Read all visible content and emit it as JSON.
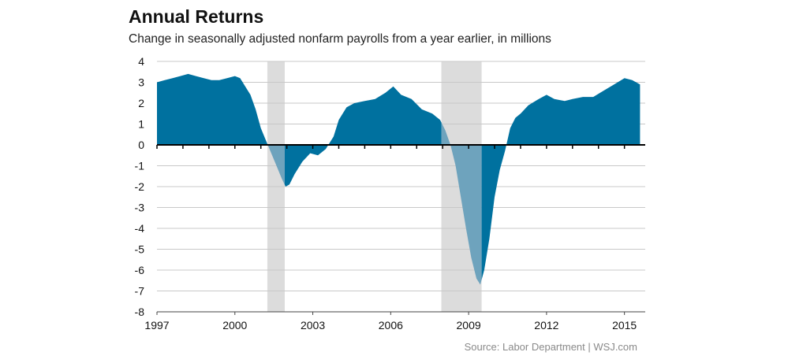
{
  "title": "Annual Returns",
  "subtitle": "Change in seasonally adjusted nonfarm payrolls from a year earlier, in millions",
  "source": "Source: Labor Department  |  WSJ.com",
  "colors": {
    "area_dark": "#00719f",
    "area_light": "#6ea3bd",
    "recession": "#dcdcdc",
    "grid": "#c8c8c8",
    "zero_line": "#000000"
  },
  "chart_data": {
    "type": "area",
    "xlim": [
      1997,
      2015.8
    ],
    "ylim": [
      -8,
      4
    ],
    "grid": true,
    "x_ticks": [
      1997,
      2000,
      2003,
      2006,
      2009,
      2012,
      2015
    ],
    "y_ticks": [
      4,
      3,
      2,
      1,
      0,
      -1,
      -2,
      -3,
      -4,
      -5,
      -6,
      -7,
      -8
    ],
    "recessions": [
      {
        "start": 2001.25,
        "end": 2001.92
      },
      {
        "start": 2007.95,
        "end": 2009.5
      }
    ],
    "series": [
      {
        "x": [
          1997.0,
          1997.3,
          1997.6,
          1997.9,
          1998.2,
          1998.5,
          1998.8,
          1999.1,
          1999.4,
          1999.7,
          2000.0,
          2000.2,
          2000.4,
          2000.6,
          2000.8,
          2001.0,
          2001.2,
          2001.4,
          2001.6,
          2001.8,
          2001.95,
          2002.1,
          2002.3,
          2002.6,
          2002.9,
          2003.2,
          2003.5,
          2003.8,
          2004.0,
          2004.3,
          2004.6,
          2005.0,
          2005.4,
          2005.8,
          2006.1,
          2006.4,
          2006.8,
          2007.2,
          2007.6,
          2007.9,
          2008.1,
          2008.3,
          2008.5,
          2008.7,
          2008.9,
          2009.1,
          2009.3,
          2009.45,
          2009.6,
          2009.8,
          2010.0,
          2010.2,
          2010.4,
          2010.6,
          2010.8,
          2011.0,
          2011.3,
          2011.7,
          2012.0,
          2012.3,
          2012.7,
          2013.0,
          2013.4,
          2013.8,
          2014.2,
          2014.6,
          2015.0,
          2015.3,
          2015.6
        ],
        "y": [
          3.0,
          3.1,
          3.2,
          3.3,
          3.4,
          3.3,
          3.2,
          3.1,
          3.1,
          3.2,
          3.3,
          3.2,
          2.8,
          2.4,
          1.7,
          0.8,
          0.2,
          -0.4,
          -1.0,
          -1.6,
          -2.0,
          -1.9,
          -1.4,
          -0.8,
          -0.4,
          -0.5,
          -0.2,
          0.4,
          1.2,
          1.8,
          2.0,
          2.1,
          2.2,
          2.5,
          2.8,
          2.4,
          2.2,
          1.7,
          1.5,
          1.2,
          0.7,
          0.0,
          -1.0,
          -2.5,
          -4.0,
          -5.4,
          -6.4,
          -6.7,
          -6.0,
          -4.5,
          -2.5,
          -1.2,
          -0.3,
          0.8,
          1.3,
          1.5,
          1.9,
          2.2,
          2.4,
          2.2,
          2.1,
          2.2,
          2.3,
          2.3,
          2.6,
          2.9,
          3.2,
          3.1,
          2.9
        ]
      }
    ]
  }
}
